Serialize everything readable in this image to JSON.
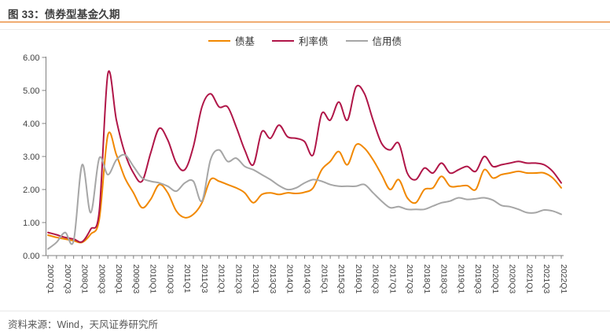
{
  "header": {
    "title": "图 33：债券型基金久期"
  },
  "accent_colors": {
    "title_underline": "#f0ac72",
    "divider": "#ececec"
  },
  "legend": [
    {
      "label": "债基",
      "color": "#F18800"
    },
    {
      "label": "利率债",
      "color": "#B01648"
    },
    {
      "label": "信用债",
      "color": "#A6A6A6"
    }
  ],
  "footer": {
    "source": "资料来源：Wind，天风证券研究所"
  },
  "chart_data": {
    "type": "line",
    "title": "图 33：债券型基金久期",
    "xlabel": "",
    "ylabel": "",
    "ylim": [
      0,
      6
    ],
    "ytick_labels": [
      "0.00",
      "1.00",
      "2.00",
      "3.00",
      "4.00",
      "5.00",
      "6.00"
    ],
    "x_label_every": 2,
    "grid": false,
    "legend_position": "top-center",
    "categories": [
      "2007Q1",
      "2007Q2",
      "2007Q3",
      "2007Q4",
      "2008Q1",
      "2008Q2",
      "2008Q3",
      "2008Q4",
      "2009Q1",
      "2009Q2",
      "2009Q3",
      "2009Q4",
      "2010Q1",
      "2010Q2",
      "2010Q3",
      "2010Q4",
      "2011Q1",
      "2011Q2",
      "2011Q3",
      "2011Q4",
      "2012Q1",
      "2012Q2",
      "2012Q3",
      "2012Q4",
      "2013Q1",
      "2013Q2",
      "2013Q3",
      "2013Q4",
      "2014Q1",
      "2014Q2",
      "2014Q3",
      "2014Q4",
      "2015Q1",
      "2015Q2",
      "2015Q3",
      "2015Q4",
      "2016Q1",
      "2016Q2",
      "2016Q3",
      "2016Q4",
      "2017Q1",
      "2017Q2",
      "2017Q3",
      "2017Q4",
      "2018Q1",
      "2018Q2",
      "2018Q3",
      "2018Q4",
      "2019Q1",
      "2019Q2",
      "2019Q3",
      "2019Q4",
      "2020Q1",
      "2020Q2",
      "2020Q3",
      "2020Q4",
      "2021Q1",
      "2021Q2",
      "2021Q3",
      "2021Q4",
      "2022Q1"
    ],
    "series": [
      {
        "name": "债基",
        "color": "#F18800",
        "values": [
          0.62,
          0.55,
          0.5,
          0.45,
          0.4,
          0.65,
          1.1,
          3.65,
          3.05,
          2.35,
          1.9,
          1.45,
          1.7,
          2.15,
          1.9,
          1.35,
          1.15,
          1.25,
          1.6,
          2.3,
          2.25,
          2.15,
          2.05,
          1.9,
          1.6,
          1.85,
          1.9,
          1.85,
          1.9,
          1.88,
          1.92,
          2.05,
          2.6,
          2.85,
          3.15,
          2.75,
          3.35,
          3.25,
          2.9,
          2.45,
          2.0,
          2.3,
          1.75,
          1.6,
          2.0,
          2.05,
          2.4,
          2.1,
          2.1,
          2.12,
          2.0,
          2.6,
          2.35,
          2.45,
          2.5,
          2.55,
          2.5,
          2.5,
          2.5,
          2.35,
          2.05
        ]
      },
      {
        "name": "利率债",
        "color": "#B01648",
        "values": [
          0.7,
          0.63,
          0.55,
          0.5,
          0.42,
          0.8,
          1.35,
          5.5,
          4.1,
          3.1,
          2.5,
          2.25,
          3.1,
          3.85,
          3.5,
          2.8,
          2.6,
          3.3,
          4.5,
          4.9,
          4.5,
          4.5,
          3.9,
          3.2,
          2.75,
          3.75,
          3.55,
          3.95,
          3.6,
          3.55,
          3.45,
          3.05,
          4.3,
          4.1,
          4.65,
          4.1,
          5.1,
          4.9,
          4.1,
          3.4,
          3.2,
          3.4,
          2.5,
          2.3,
          2.65,
          2.5,
          2.8,
          2.5,
          2.6,
          2.7,
          2.55,
          3.0,
          2.7,
          2.75,
          2.8,
          2.85,
          2.8,
          2.8,
          2.75,
          2.55,
          2.2
        ]
      },
      {
        "name": "信用债",
        "color": "#A6A6A6",
        "values": [
          0.2,
          0.4,
          0.7,
          0.45,
          2.75,
          1.3,
          2.95,
          2.45,
          2.9,
          3.05,
          2.7,
          2.35,
          2.25,
          2.2,
          2.1,
          1.95,
          2.2,
          2.25,
          1.65,
          2.9,
          3.2,
          2.85,
          2.95,
          2.7,
          2.6,
          2.45,
          2.3,
          2.12,
          2.0,
          2.05,
          2.2,
          2.3,
          2.25,
          2.15,
          2.1,
          2.1,
          2.1,
          2.15,
          1.9,
          1.65,
          1.45,
          1.48,
          1.4,
          1.4,
          1.4,
          1.5,
          1.6,
          1.65,
          1.75,
          1.7,
          1.72,
          1.75,
          1.68,
          1.52,
          1.48,
          1.4,
          1.3,
          1.3,
          1.38,
          1.35,
          1.25
        ]
      }
    ]
  }
}
